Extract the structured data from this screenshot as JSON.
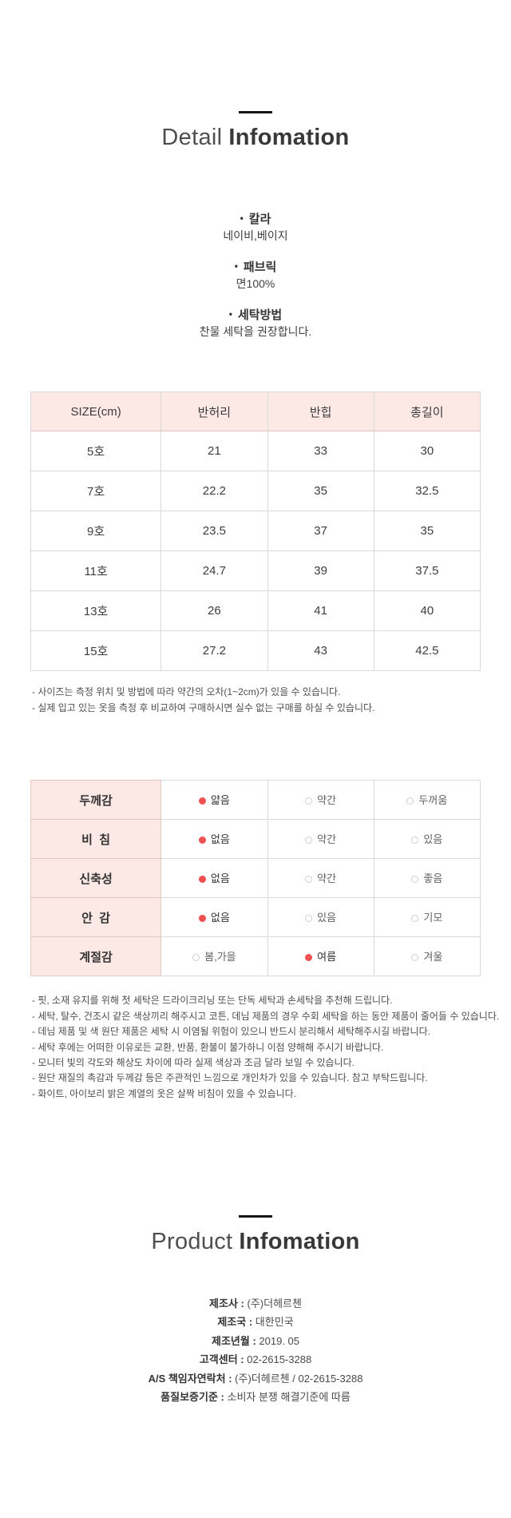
{
  "detail_section": {
    "title_light": "Detail",
    "title_bold": "Infomation",
    "bullet_char": "•",
    "bullets": [
      {
        "label": "칼라",
        "value": "네이비,베이지"
      },
      {
        "label": "패브릭",
        "value": "면100%"
      },
      {
        "label": "세탁방법",
        "value": "찬물 세탁을 권장합니다."
      }
    ]
  },
  "size_table": {
    "headers": [
      "SIZE(cm)",
      "반허리",
      "반힙",
      "총길이"
    ],
    "rows": [
      [
        "5호",
        "21",
        "33",
        "30"
      ],
      [
        "7호",
        "22.2",
        "35",
        "32.5"
      ],
      [
        "9호",
        "23.5",
        "37",
        "35"
      ],
      [
        "11호",
        "24.7",
        "39",
        "37.5"
      ],
      [
        "13호",
        "26",
        "41",
        "40"
      ],
      [
        "15호",
        "27.2",
        "43",
        "42.5"
      ]
    ],
    "notes": [
      "- 사이즈는 측정 위치 및 방법에 따라 약간의 오차(1~2cm)가 있을 수 있습니다.",
      "- 실제 입고 있는 옷을 측정 후 비교하여 구매하시면 실수 없는 구매를 하실 수 있습니다."
    ]
  },
  "attribute_table": {
    "rows": [
      {
        "label": "두께감",
        "options": [
          {
            "text": "얇음",
            "selected": true
          },
          {
            "text": "약간",
            "selected": false
          },
          {
            "text": "두꺼움",
            "selected": false
          }
        ]
      },
      {
        "label": "비  침",
        "options": [
          {
            "text": "없음",
            "selected": true
          },
          {
            "text": "약간",
            "selected": false
          },
          {
            "text": "있음",
            "selected": false
          }
        ]
      },
      {
        "label": "신축성",
        "options": [
          {
            "text": "없음",
            "selected": true
          },
          {
            "text": "약간",
            "selected": false
          },
          {
            "text": "좋음",
            "selected": false
          }
        ]
      },
      {
        "label": "안  감",
        "options": [
          {
            "text": "없음",
            "selected": true
          },
          {
            "text": "있음",
            "selected": false
          },
          {
            "text": "기모",
            "selected": false
          }
        ]
      },
      {
        "label": "계절감",
        "options": [
          {
            "text": "봄,가을",
            "selected": false
          },
          {
            "text": "여름",
            "selected": true
          },
          {
            "text": "겨울",
            "selected": false
          }
        ]
      }
    ]
  },
  "care_notes": [
    "- 핏, 소재 유지를 위해 첫 세탁은 드라이크리닝 또는 단독 세탁과 손세탁을 추천해 드립니다.",
    "- 세탁, 탈수, 건조시 같은 색상끼리 해주시고 코튼, 데님 제품의 경우 수회 세탁을 하는 동안 제품이 줄어들 수 있습니다.",
    "- 데님 제품 및 색 원단 제품은 세탁 시 이염될 위험이 있으니 반드시 분리해서 세탁해주시길 바랍니다.",
    "- 세탁 후에는 어떠한 이유로든 교환, 반품, 환불이 불가하니 이점 양해해 주시기 바랍니다.",
    "- 모니터 빛의 각도와 해상도 차이에 따라 실제 색상과 조금 달라 보일 수 있습니다.",
    "- 원단 재질의 촉감과 두께감 등은 주관적인 느낌으로 개인차가 있을 수 있습니다. 참고 부탁드립니다.",
    "- 화이트, 아이보리 밝은 계열의 옷은 살짝 비침이 있을 수 있습니다."
  ],
  "product_section": {
    "title_light": "Product",
    "title_bold": "Infomation",
    "separator": " : ",
    "rows": [
      {
        "label": "제조사",
        "value": "(주)더헤르첸"
      },
      {
        "label": "제조국",
        "value": "대한민국"
      },
      {
        "label": "제조년월",
        "value": "2019. 05"
      },
      {
        "label": "고객센터",
        "value": "02-2615-3288"
      },
      {
        "label": "A/S 책임자연락처",
        "value": "(주)더헤르첸 / 02-2615-3288"
      },
      {
        "label": "품질보증기준",
        "value": "소비자 분쟁 해결기준에 따름"
      }
    ]
  },
  "colors": {
    "accent_red": "#ef5152",
    "pink_header_bg": "#fce9e6",
    "table_border": "#dadada",
    "title_dark": "#383838",
    "divider_black": "#161616"
  }
}
